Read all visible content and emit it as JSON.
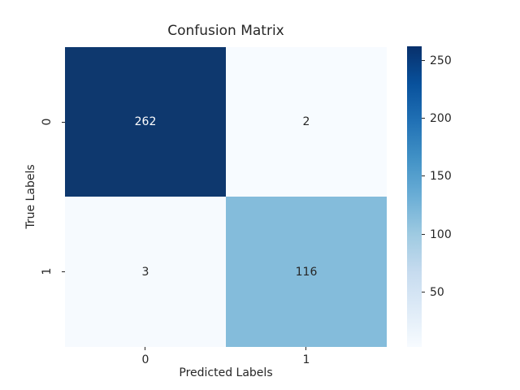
{
  "chart_data": {
    "type": "heatmap",
    "title": "Confusion Matrix",
    "xlabel": "Predicted Labels",
    "ylabel": "True Labels",
    "x_ticklabels": [
      "0",
      "1"
    ],
    "y_ticklabels": [
      "0",
      "1"
    ],
    "matrix": [
      [
        262,
        2
      ],
      [
        3,
        116
      ]
    ],
    "colormap": "Blues",
    "vmin": 2,
    "vmax": 262,
    "cell_colors": [
      [
        "#0e386e",
        "#f7fbff"
      ],
      [
        "#f6fafe",
        "#84bcdb"
      ]
    ],
    "cell_text_colors": [
      [
        "#ffffff",
        "#262626"
      ],
      [
        "#262626",
        "#262626"
      ]
    ],
    "grid": false,
    "colorbar": {
      "position": "right",
      "tick_labels_top_to_bottom": [
        "250",
        "200",
        "150",
        "100",
        "50"
      ],
      "gradient_stops_top_to_bottom": [
        "#08306b",
        "#08519c",
        "#2171b5",
        "#4292c6",
        "#6baed6",
        "#9ecae1",
        "#c6dbef",
        "#deebf7",
        "#f7fbff"
      ]
    }
  }
}
